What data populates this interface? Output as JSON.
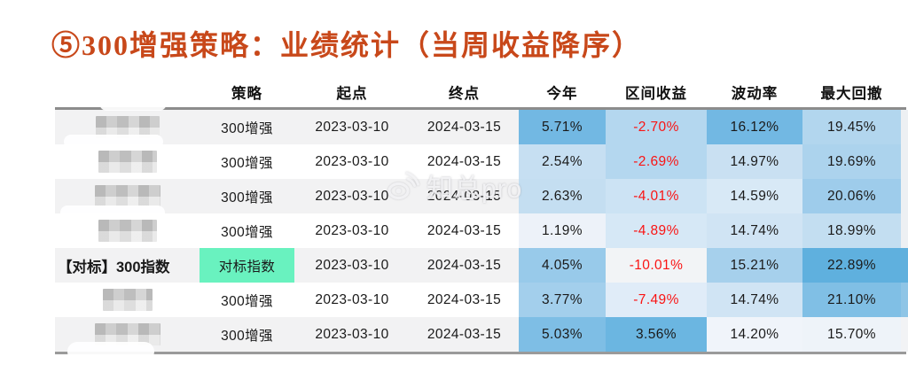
{
  "page": {
    "title": "⑤300增强策略：业绩统计（当周收益降序）"
  },
  "colors": {
    "title_text": "#c8481a",
    "negative_text": "#fa1414",
    "benchmark_highlight": "#69f2bf",
    "row_stripe": "#f2f2f3",
    "table_rule": "#8c8c8c"
  },
  "watermark": {
    "icon": "weibo-icon",
    "text": "知总pro"
  },
  "table": {
    "headers": [
      "策略",
      "起点",
      "终点",
      "今年",
      "区间收益",
      "波动率",
      "最大回撤"
    ],
    "rows": [
      {
        "name": "",
        "masked": true,
        "mask_width": 72,
        "strategy": "300增强",
        "strategy_bg": "",
        "start": "2023-03-10",
        "end": "2024-03-15",
        "cells": [
          {
            "v": "5.71%",
            "bg": "#72b8e3",
            "neg": false
          },
          {
            "v": "-2.70%",
            "bg": "#b4d7ef",
            "neg": true
          },
          {
            "v": "16.12%",
            "bg": "#72b8e3",
            "neg": false
          },
          {
            "v": "19.45%",
            "bg": "#b2d6ee",
            "neg": false
          }
        ]
      },
      {
        "name": "",
        "masked": true,
        "mask_width": 66,
        "strategy": "300增强",
        "strategy_bg": "",
        "start": "2023-03-10",
        "end": "2024-03-15",
        "cells": [
          {
            "v": "2.54%",
            "bg": "#c6dff2",
            "neg": false
          },
          {
            "v": "-2.69%",
            "bg": "#b4d7ef",
            "neg": true
          },
          {
            "v": "14.97%",
            "bg": "#c9e0f2",
            "neg": false
          },
          {
            "v": "19.69%",
            "bg": "#acd3ed",
            "neg": false
          }
        ]
      },
      {
        "name": "",
        "masked": true,
        "mask_width": 74,
        "strategy": "300增强",
        "strategy_bg": "",
        "start": "2023-03-10",
        "end": "2024-03-15",
        "cells": [
          {
            "v": "2.63%",
            "bg": "#c4def1",
            "neg": false
          },
          {
            "v": "-4.01%",
            "bg": "#cce3f4",
            "neg": true
          },
          {
            "v": "14.59%",
            "bg": "#d8e9f6",
            "neg": false
          },
          {
            "v": "20.06%",
            "bg": "#9ecceb",
            "neg": false
          }
        ]
      },
      {
        "name": "",
        "masked": true,
        "mask_width": 66,
        "strategy": "300增强",
        "strategy_bg": "",
        "start": "2023-03-10",
        "end": "2024-03-15",
        "cells": [
          {
            "v": "1.19%",
            "bg": "#edf2f9",
            "neg": false
          },
          {
            "v": "-4.89%",
            "bg": "#d6e8f6",
            "neg": true
          },
          {
            "v": "14.74%",
            "bg": "#d0e4f4",
            "neg": false
          },
          {
            "v": "18.99%",
            "bg": "#c3def1",
            "neg": false
          }
        ]
      },
      {
        "name": "【对标】300指数",
        "masked": false,
        "mask_width": 0,
        "strategy": "对标指数",
        "strategy_bg": "#69f2bf",
        "start": "2023-03-10",
        "end": "2024-03-15",
        "cells": [
          {
            "v": "4.05%",
            "bg": "#98caea",
            "neg": false
          },
          {
            "v": "-10.01%",
            "bg": "#f2f4f6",
            "neg": true
          },
          {
            "v": "15.21%",
            "bg": "#a6d0ec",
            "neg": false
          },
          {
            "v": "22.89%",
            "bg": "#5fb0de",
            "neg": false
          }
        ]
      },
      {
        "name": "",
        "masked": true,
        "mask_width": 56,
        "strategy": "300增强",
        "strategy_bg": "",
        "start": "2023-03-10",
        "end": "2024-03-15",
        "cells": [
          {
            "v": "3.77%",
            "bg": "#a3cfec",
            "neg": false
          },
          {
            "v": "-7.49%",
            "bg": "#e0ecf8",
            "neg": true
          },
          {
            "v": "14.74%",
            "bg": "#d0e4f4",
            "neg": false
          },
          {
            "v": "21.10%",
            "bg": "#80bfe5",
            "neg": false
          }
        ]
      },
      {
        "name": "",
        "masked": true,
        "mask_width": 74,
        "strategy": "300增强",
        "strategy_bg": "",
        "start": "2023-03-10",
        "end": "2024-03-15",
        "cells": [
          {
            "v": "5.03%",
            "bg": "#7ebee5",
            "neg": false
          },
          {
            "v": "3.56%",
            "bg": "#6bb6e1",
            "neg": false
          },
          {
            "v": "14.20%",
            "bg": "#f0f4fa",
            "neg": false
          },
          {
            "v": "15.70%",
            "bg": "#eef3f9",
            "neg": false
          }
        ]
      }
    ],
    "edge_strip": [
      "#edf0f3",
      "#edf0f3",
      "#edf0f3",
      "#edf0f3",
      "#60b0dd",
      "#8fc5e6",
      "#f2f3f5"
    ]
  }
}
